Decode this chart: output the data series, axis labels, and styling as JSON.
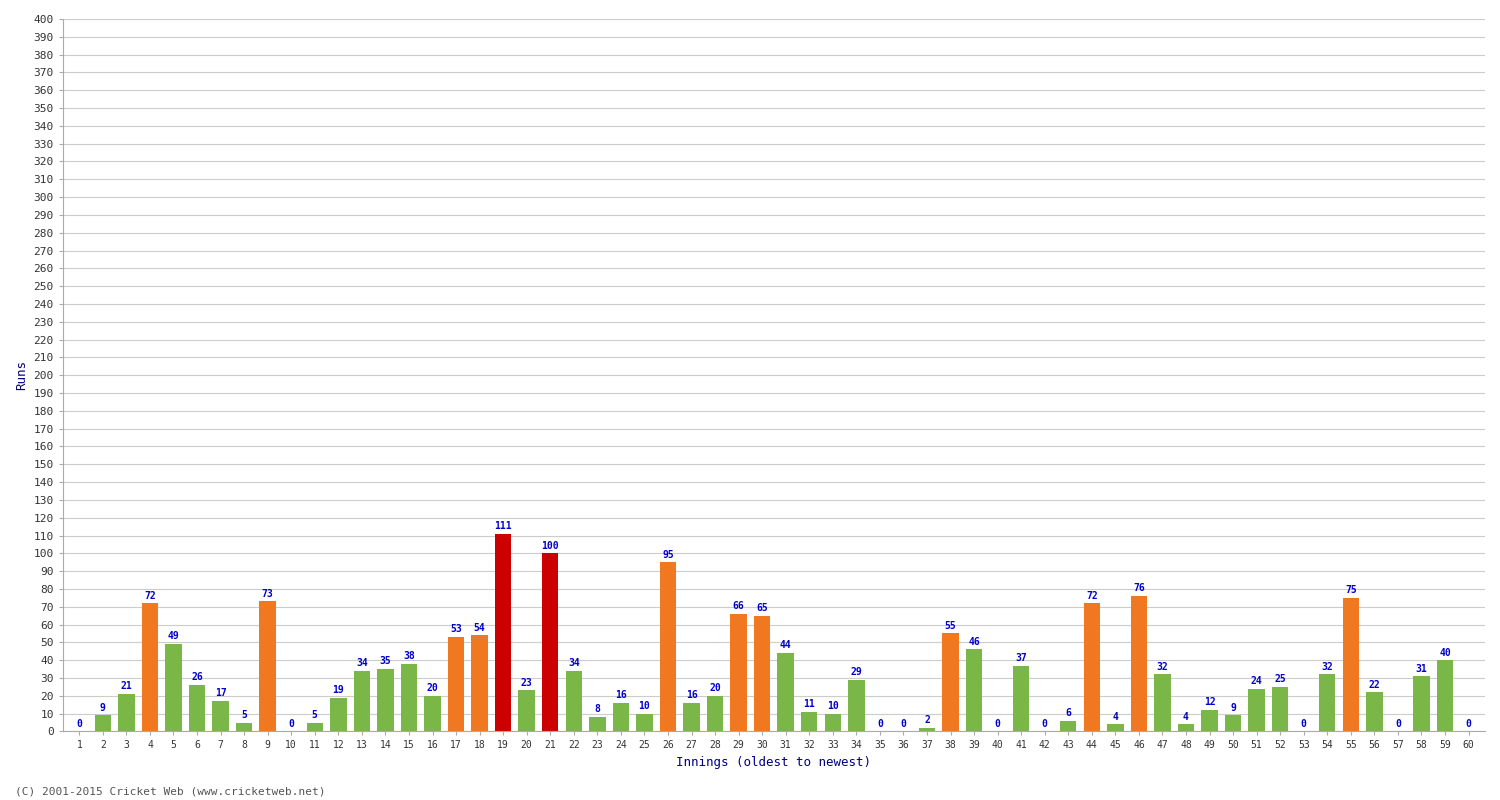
{
  "innings": [
    1,
    2,
    3,
    4,
    5,
    6,
    7,
    8,
    9,
    10,
    11,
    12,
    13,
    14,
    15,
    16,
    17,
    18,
    19,
    20,
    21,
    22,
    23,
    24,
    25,
    26,
    27,
    28,
    29,
    30,
    31,
    32,
    33,
    34,
    35,
    36,
    37,
    38,
    39,
    40,
    41,
    42,
    43,
    44,
    45,
    46,
    47,
    48,
    49,
    50,
    51,
    52,
    53,
    54,
    55,
    56,
    57,
    58,
    59,
    60
  ],
  "values": [
    0,
    9,
    21,
    72,
    49,
    26,
    17,
    5,
    73,
    0,
    5,
    19,
    34,
    35,
    38,
    20,
    53,
    54,
    111,
    23,
    100,
    34,
    8,
    16,
    10,
    95,
    16,
    20,
    66,
    65,
    44,
    11,
    10,
    29,
    0,
    0,
    2,
    55,
    46,
    0,
    37,
    0,
    6,
    72,
    4,
    76,
    32,
    4,
    12,
    9,
    24,
    25,
    0,
    32,
    75,
    22,
    0,
    31,
    40,
    0
  ],
  "colors": [
    "#7ab648",
    "#7ab648",
    "#7ab648",
    "#f07820",
    "#7ab648",
    "#7ab648",
    "#7ab648",
    "#7ab648",
    "#f07820",
    "#7ab648",
    "#7ab648",
    "#7ab648",
    "#7ab648",
    "#7ab648",
    "#7ab648",
    "#7ab648",
    "#f07820",
    "#f07820",
    "#cc0000",
    "#7ab648",
    "#cc0000",
    "#7ab648",
    "#7ab648",
    "#7ab648",
    "#7ab648",
    "#f07820",
    "#7ab648",
    "#7ab648",
    "#f07820",
    "#f07820",
    "#7ab648",
    "#7ab648",
    "#7ab648",
    "#7ab648",
    "#7ab648",
    "#7ab648",
    "#7ab648",
    "#f07820",
    "#7ab648",
    "#7ab648",
    "#7ab648",
    "#7ab648",
    "#7ab648",
    "#f07820",
    "#7ab648",
    "#f07820",
    "#7ab648",
    "#7ab648",
    "#7ab648",
    "#7ab648",
    "#7ab648",
    "#7ab648",
    "#7ab648",
    "#7ab648",
    "#f07820",
    "#7ab648",
    "#7ab648",
    "#7ab648",
    "#7ab648",
    "#7ab648"
  ],
  "ylabel": "Runs",
  "xlabel": "Innings (oldest to newest)",
  "ylim": [
    0,
    400
  ],
  "yticks": [
    0,
    10,
    20,
    30,
    40,
    50,
    60,
    70,
    80,
    90,
    100,
    110,
    120,
    130,
    140,
    150,
    160,
    170,
    180,
    190,
    200,
    210,
    220,
    230,
    240,
    250,
    260,
    270,
    280,
    290,
    300,
    310,
    320,
    330,
    340,
    350,
    360,
    370,
    380,
    390,
    400
  ],
  "bg_color": "#ffffff",
  "plot_bg": "#ffffff",
  "grid_color": "#cccccc",
  "label_color": "#0000cc",
  "axis_label_color": "#000080",
  "tick_color": "#333333",
  "footer": "(C) 2001-2015 Cricket Web (www.cricketweb.net)"
}
